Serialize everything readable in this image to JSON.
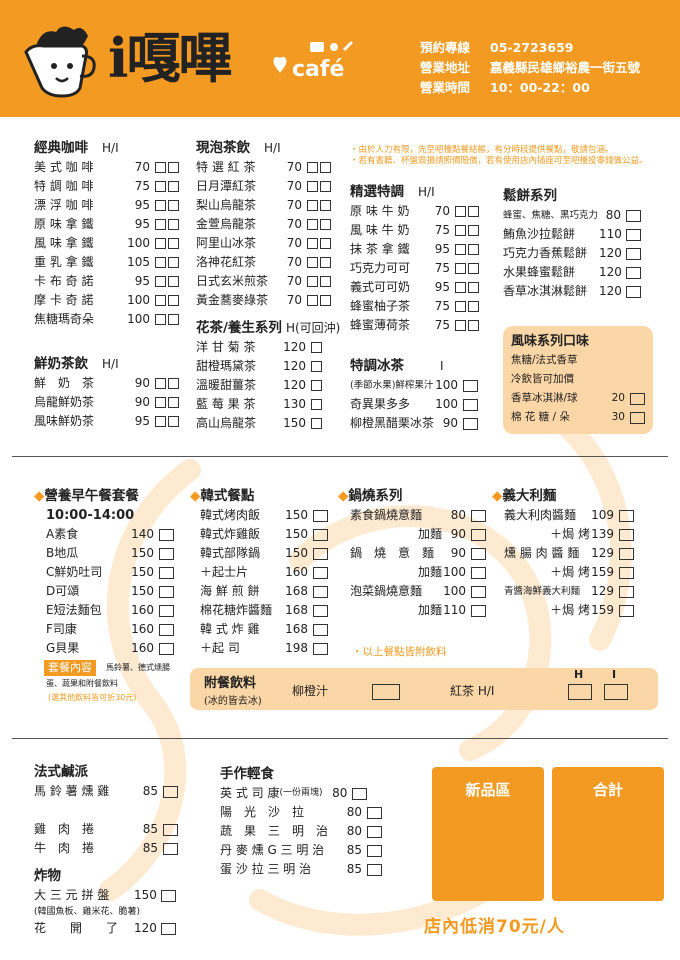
{
  "header": {
    "brand": "i嘎嗶",
    "cafe": "café",
    "info": [
      {
        "label": "預約專線",
        "value": "05-2723659"
      },
      {
        "label": "營業地址",
        "value": "嘉義縣民雄鄉裕農一街五號"
      },
      {
        "label": "營業時間",
        "value": "10：00-22：00"
      }
    ]
  },
  "coffee": {
    "title": "經典咖啡",
    "hi": "H/I",
    "items": [
      {
        "name": "美 式 咖 啡",
        "price": "70"
      },
      {
        "name": "特 調 咖 啡",
        "price": "75"
      },
      {
        "name": "漂 浮 咖 啡",
        "price": "95"
      },
      {
        "name": "原 味 拿 鐵",
        "price": "95"
      },
      {
        "name": "風 味 拿 鐵",
        "price": "100"
      },
      {
        "name": "重 乳 拿 鐵",
        "price": "105"
      },
      {
        "name": "卡 布 奇 諾",
        "price": "95"
      },
      {
        "name": "摩 卡 奇 諾",
        "price": "100"
      },
      {
        "name": "焦糖瑪奇朵",
        "price": "100"
      }
    ]
  },
  "milk": {
    "title": "鮮奶茶飲",
    "hi": "H/I",
    "items": [
      {
        "name": "鮮　奶　茶",
        "price": "90"
      },
      {
        "name": "烏龍鮮奶茶",
        "price": "90"
      },
      {
        "name": "風味鮮奶茶",
        "price": "95"
      }
    ]
  },
  "tea": {
    "title": "現泡茶飲",
    "hi": "H/I",
    "items": [
      {
        "name": "特 選 紅 茶",
        "price": "70"
      },
      {
        "name": "日月潭紅茶",
        "price": "70"
      },
      {
        "name": "梨山烏龍茶",
        "price": "70"
      },
      {
        "name": "金萱烏龍茶",
        "price": "70"
      },
      {
        "name": "阿里山冰茶",
        "price": "70"
      },
      {
        "name": "洛神花紅茶",
        "price": "70"
      },
      {
        "name": "日式玄米煎茶",
        "price": "70"
      },
      {
        "name": "黃金蕎麥綠茶",
        "price": "70"
      }
    ]
  },
  "herbal": {
    "title": "花茶/養生系列",
    "hi": "H(可回沖)",
    "items": [
      {
        "name": "洋 甘 菊 茶",
        "price": "120"
      },
      {
        "name": "甜橙瑪黛茶",
        "price": "120"
      },
      {
        "name": "溫暖甜薑茶",
        "price": "120"
      },
      {
        "name": "藍 莓 果 茶",
        "price": "130"
      },
      {
        "name": "高山烏龍茶",
        "price": "150"
      }
    ]
  },
  "note": {
    "lines": [
      "・由於人力有限，先至吧檯點餐結帳，有分時段提供餐點，敬請包涵。",
      "・若有書籍、杯盤毀損請照價賠償，若有使用店內插座可至吧檯投零錢做公益。"
    ]
  },
  "special": {
    "title": "精選特調",
    "hi": "H/I",
    "items": [
      {
        "name": "原 味 牛 奶",
        "price": "70"
      },
      {
        "name": "風 味 牛 奶",
        "price": "75"
      },
      {
        "name": "抹 茶 拿 鐵",
        "price": "95"
      },
      {
        "name": "巧克力可可",
        "price": "75"
      },
      {
        "name": "義式可可奶",
        "price": "95"
      },
      {
        "name": "蜂蜜柚子茶",
        "price": "75"
      },
      {
        "name": "蜂蜜薄荷茶",
        "price": "75"
      }
    ]
  },
  "iced": {
    "title": "特調冰茶",
    "hi": "I",
    "items": [
      {
        "name": "(季節水果)鮮榨果汁",
        "price": "100"
      },
      {
        "name": "奇異果多多",
        "price": "100"
      },
      {
        "name": "柳橙黑醋栗冰茶",
        "price": "90"
      }
    ]
  },
  "waffle": {
    "title": "鬆餅系列",
    "items": [
      {
        "name": "蜂蜜、焦糖、黑巧克力",
        "price": "80"
      },
      {
        "name": "鮪魚沙拉鬆餅",
        "price": "110"
      },
      {
        "name": "巧克力香蕉鬆餅",
        "price": "120"
      },
      {
        "name": "水果蜂蜜鬆餅",
        "price": "120"
      },
      {
        "name": "香草冰淇淋鬆餅",
        "price": "120"
      }
    ]
  },
  "flavor": {
    "title": "風味系列口味",
    "lines": [
      "焦糖/法式香草",
      "冷飲皆可加價"
    ],
    "items": [
      {
        "name": "香草冰淇淋/球",
        "price": "20"
      },
      {
        "name": "棉 花 糖 / 朵",
        "price": "30"
      }
    ]
  },
  "breakfast": {
    "title": "營養早午餐套餐",
    "time": "10:00-14:00",
    "items": [
      {
        "name": "A素食",
        "price": "140"
      },
      {
        "name": "B地瓜",
        "price": "150"
      },
      {
        "name": "C鮮奶吐司",
        "price": "150"
      },
      {
        "name": "D可頌",
        "price": "150"
      },
      {
        "name": "E短法麵包",
        "price": "160"
      },
      {
        "name": "F司康",
        "price": "160"
      },
      {
        "name": "G貝果",
        "price": "160"
      }
    ],
    "pkg_label": "套餐內容",
    "pkg_desc": "馬鈴薯、德式燻腸",
    "pkg_desc2": "蛋、蔬果和附餐飲料",
    "pkg_note": "(選其他飲料皆可折30元)"
  },
  "korean": {
    "title": "韓式餐點",
    "items": [
      {
        "name": "韓式烤肉飯",
        "price": "150"
      },
      {
        "name": "韓式炸雞飯",
        "price": "150"
      },
      {
        "name": "韓式部隊鍋",
        "price": "150"
      },
      {
        "name": "＋起士片",
        "price": "160"
      },
      {
        "name": "海 鮮 煎 餅",
        "price": "168"
      },
      {
        "name": "棉花糖炸醬麵",
        "price": "168"
      },
      {
        "name": "韓 式 炸 雞",
        "price": "168"
      },
      {
        "name": "＋起 司",
        "price": "198"
      }
    ]
  },
  "pot": {
    "title": "鍋燒系列",
    "items": [
      {
        "name": "素食鍋燒意麵",
        "price": "80"
      },
      {
        "name": "加麵",
        "price": "90"
      },
      {
        "name": "鍋　燒　意　麵",
        "price": "90"
      },
      {
        "name": "加麵",
        "price": "100"
      },
      {
        "name": "泡菜鍋燒意麵",
        "price": "100"
      },
      {
        "name": "加麵",
        "price": "110"
      }
    ],
    "note": "・以上餐點皆附飲料"
  },
  "pasta": {
    "title": "義大利麵",
    "items": [
      {
        "name": "義大利肉醬麵",
        "price": "109"
      },
      {
        "name": "＋焗 烤",
        "price": "139"
      },
      {
        "name": "燻 腸 肉 醬 麵",
        "price": "129"
      },
      {
        "name": "＋焗 烤",
        "price": "159"
      },
      {
        "name": "青醬海鮮義大利麵",
        "price": "129"
      },
      {
        "name": "＋焗 烤",
        "price": "159"
      }
    ]
  },
  "addon": {
    "title": "附餐飲料",
    "sub": "(冰的皆去冰)",
    "orange": "柳橙汁",
    "black": "紅茶 H/I",
    "h": "H",
    "i": "I"
  },
  "quiche": {
    "title": "法式鹹派",
    "items": [
      {
        "name": "馬 鈴 薯 燻 雞",
        "price": "85"
      },
      {
        "name": "雞　肉　捲",
        "price": "85"
      },
      {
        "name": "牛　肉　捲",
        "price": "85"
      }
    ]
  },
  "fried": {
    "title": "炸物",
    "items": [
      {
        "name": "大 三 元 拼 盤",
        "price": "150"
      },
      {
        "name": "花　　開　　了",
        "price": "120"
      }
    ],
    "note": "(韓國魚板、雞米花、脆薯)"
  },
  "light": {
    "title": "手作輕食",
    "items": [
      {
        "name": "英 式 司 康",
        "sub": "(一份兩塊)",
        "price": "80"
      },
      {
        "name": "陽　光　沙　拉",
        "price": "80"
      },
      {
        "name": "蔬　果　三　明　治",
        "price": "80"
      },
      {
        "name": "丹 麥 燻 G 三 明 治",
        "price": "85"
      },
      {
        "name": "蛋 沙 拉 三 明 治",
        "price": "85"
      }
    ]
  },
  "boxes": {
    "new": "新品區",
    "total": "合計"
  },
  "minimum": "店內低消70元/人",
  "colors": {
    "accent": "#f39a22",
    "light": "#fbd6a6"
  }
}
